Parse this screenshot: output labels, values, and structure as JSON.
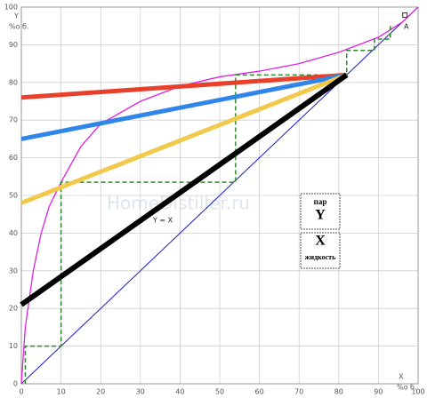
{
  "chart_data": {
    "type": "line",
    "ylabel": "Y",
    "yunit": "%о б.",
    "xlabel": "X",
    "xunit": "%о б.",
    "xlim": [
      0,
      100
    ],
    "ylim": [
      0,
      100
    ],
    "xticks": [
      0,
      10,
      20,
      30,
      40,
      50,
      60,
      70,
      80,
      90,
      100
    ],
    "yticks": [
      0,
      10,
      20,
      30,
      40,
      50,
      60,
      70,
      80,
      90,
      100
    ],
    "grid": true,
    "annotation_diag": "Y = X",
    "annotation_point": "A",
    "watermark": "HomeDistiller.ru",
    "legend_vapor": "пар",
    "legend_vapor_sym": "Y",
    "legend_liquid_sym": "X",
    "legend_liquid": "жидкость",
    "series": [
      {
        "color": "#1a1acc",
        "x": [
          0,
          100
        ],
        "values": [
          0,
          100
        ]
      },
      {
        "color": "#e020e0",
        "x": [
          0,
          1,
          3,
          5,
          7,
          10,
          15,
          20,
          30,
          40,
          50,
          60,
          70,
          80,
          90,
          96,
          100
        ],
        "values": [
          0,
          15,
          30,
          40,
          47,
          53.5,
          63,
          69,
          75,
          79,
          81.5,
          83,
          85,
          88,
          92,
          96,
          100
        ]
      },
      {
        "color": "#2a8a2a",
        "dashed": true,
        "x": [
          1,
          1,
          10,
          10,
          54,
          54,
          82,
          82,
          89,
          89,
          93,
          93
        ],
        "values": [
          0,
          10,
          10,
          53.5,
          53.5,
          82,
          82,
          88.5,
          88.5,
          91.5,
          91.5,
          95
        ]
      },
      {
        "color": "#e8402a",
        "x": [
          0,
          82
        ],
        "values": [
          76,
          82
        ]
      },
      {
        "color": "#2f86e8",
        "x": [
          0,
          82
        ],
        "values": [
          65,
          82
        ]
      },
      {
        "color": "#f2c94c",
        "x": [
          0,
          82
        ],
        "values": [
          48,
          82
        ]
      },
      {
        "color": "#000000",
        "x": [
          0,
          82
        ],
        "values": [
          21,
          82
        ]
      }
    ]
  }
}
